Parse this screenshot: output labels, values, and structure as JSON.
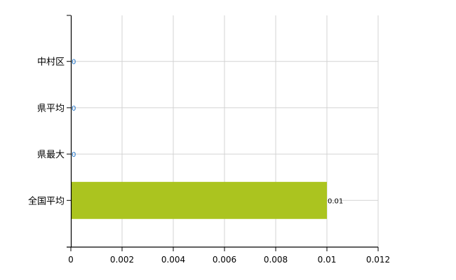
{
  "chart_data": {
    "type": "bar",
    "orientation": "horizontal",
    "categories": [
      "中村区",
      "県平均",
      "県最大",
      "全国平均"
    ],
    "values": [
      0,
      0,
      0,
      0.01
    ],
    "data_labels": [
      "0",
      "0",
      "0",
      "0.01"
    ],
    "xlim": [
      0,
      0.012
    ],
    "xticks": [
      "0",
      "0.002",
      "0.004",
      "0.006",
      "0.008",
      "0.01",
      "0.012"
    ],
    "xtick_values": [
      0,
      0.002,
      0.004,
      0.006,
      0.008,
      0.01,
      0.012
    ],
    "grid": true,
    "bar_color": "#abc41f",
    "grid_color": "#d3d3d3"
  }
}
